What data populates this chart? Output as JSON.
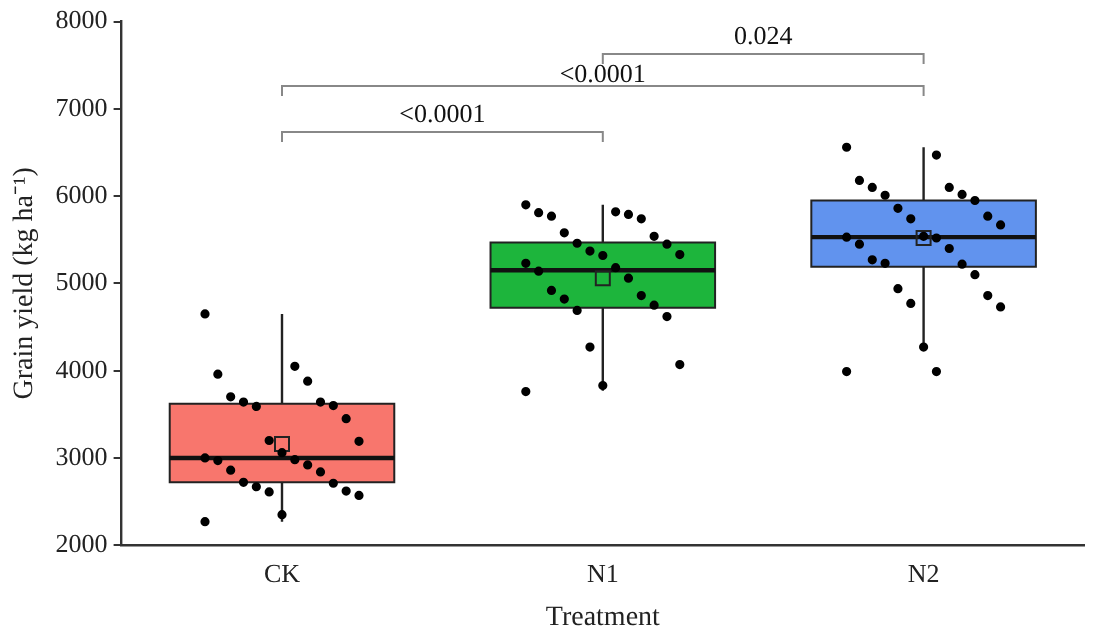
{
  "chart_data": {
    "type": "box",
    "xlabel": "Treatment",
    "ylabel": "Grain yield (kg ha⁻¹)",
    "categories": [
      "CK",
      "N1",
      "N2"
    ],
    "colors": [
      "#f8766d",
      "#1db53c",
      "#6193ee"
    ],
    "boxes": [
      {
        "low": 2270,
        "q1": 2720,
        "median": 3000,
        "q3": 3620,
        "high": 4650,
        "mean": 3160
      },
      {
        "low": 3770,
        "q1": 4720,
        "median": 5150,
        "q3": 5470,
        "high": 5900,
        "mean": 5060
      },
      {
        "low": 4270,
        "q1": 5190,
        "median": 5530,
        "q3": 5950,
        "high": 6560,
        "mean": 5520
      }
    ],
    "series": [
      {
        "type": "scatter",
        "color": "#000000",
        "x": [
          "CK",
          "CK",
          "CK",
          "CK",
          "CK",
          "CK",
          "CK",
          "CK",
          "CK",
          "CK",
          "CK",
          "CK",
          "CK",
          "CK",
          "CK",
          "CK",
          "CK",
          "CK",
          "CK",
          "CK",
          "CK",
          "CK",
          "CK",
          "CK",
          "CK",
          "CK",
          "CK"
        ],
        "values": [
          4650,
          4050,
          3960,
          3880,
          3700,
          3640,
          3640,
          3600,
          3590,
          3450,
          3200,
          3190,
          3060,
          3000,
          2980,
          2970,
          2920,
          2860,
          2840,
          2720,
          2710,
          2670,
          2620,
          2610,
          2570,
          2350,
          2270
        ]
      },
      {
        "type": "scatter",
        "color": "#000000",
        "x": [
          "N1",
          "N1",
          "N1",
          "N1",
          "N1",
          "N1",
          "N1",
          "N1",
          "N1",
          "N1",
          "N1",
          "N1",
          "N1",
          "N1",
          "N1",
          "N1",
          "N1",
          "N1",
          "N1",
          "N1",
          "N1",
          "N1",
          "N1",
          "N1",
          "N1",
          "N1",
          "N1"
        ],
        "values": [
          5900,
          5820,
          5810,
          5790,
          5770,
          5740,
          5580,
          5540,
          5460,
          5450,
          5370,
          5330,
          5320,
          5230,
          5180,
          5140,
          5060,
          4920,
          4860,
          4820,
          4750,
          4690,
          4620,
          4270,
          4070,
          3830,
          3760
        ]
      },
      {
        "type": "scatter",
        "color": "#000000",
        "x": [
          "N2",
          "N2",
          "N2",
          "N2",
          "N2",
          "N2",
          "N2",
          "N2",
          "N2",
          "N2",
          "N2",
          "N2",
          "N2",
          "N2",
          "N2",
          "N2",
          "N2",
          "N2",
          "N2",
          "N2",
          "N2",
          "N2",
          "N2",
          "N2",
          "N2",
          "N2",
          "N2",
          "N2"
        ],
        "values": [
          6560,
          6470,
          6180,
          6100,
          6100,
          6020,
          6010,
          5950,
          5860,
          5770,
          5740,
          5670,
          5540,
          5530,
          5520,
          5450,
          5400,
          5270,
          5220,
          5230,
          5100,
          4940,
          4860,
          4770,
          4730,
          4270,
          3990,
          3990
        ]
      }
    ],
    "ylim": [
      2000,
      8000
    ],
    "yticks": [
      2000,
      3000,
      4000,
      5000,
      6000,
      7000,
      8000
    ],
    "grid": false,
    "legend": false,
    "marker": "circle",
    "annotations": [
      "0.024",
      "<0.0001",
      "<0.0001"
    ]
  }
}
